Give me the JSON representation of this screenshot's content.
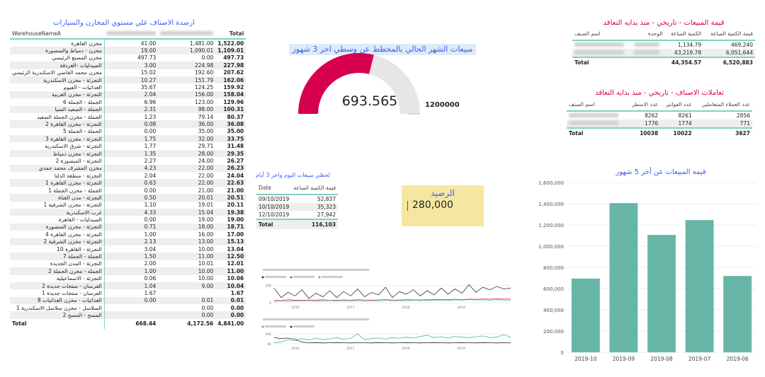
{
  "warehouse_table": {
    "title": "ارصدة الاصناف علي مستوي المخازن والسيارات",
    "col_name": "WarehouseNameA",
    "col_total": "Total",
    "rows": [
      [
        "مخزن القاهرة",
        "41.00",
        "1,481.00",
        "1,522.00"
      ],
      [
        "مخزن - دمياط والمنصورة",
        "19.00",
        "1,090.01",
        "1,109.01"
      ],
      [
        "مخزن المصنع الرئيسي",
        "497.73",
        "0.00",
        "497.73"
      ],
      [
        "الصيدليات -الغردقة",
        "3.00",
        "224.98",
        "227.98"
      ],
      [
        "مخزن محمد القاضي الاسكندرية الرئيسي",
        "15.02",
        "192.60",
        "207.62"
      ],
      [
        "التجزئة - مخزن الاسكندرية",
        "10.27",
        "151.79",
        "162.06"
      ],
      [
        "الغذائيات - الفيوم",
        "35.67",
        "124.25",
        "159.92"
      ],
      [
        "التجزئة - مخزن الغربية",
        "2.04",
        "156.00",
        "158.04"
      ],
      [
        "الجملة - الجملة 6",
        "6.96",
        "123.00",
        "129.96"
      ],
      [
        "الجملة - الصعيد المنيا",
        "2.31",
        "98.00",
        "100.31"
      ],
      [
        "الجملة - مخزن الجملة الصعيد",
        "1.23",
        "79.14",
        "80.37"
      ],
      [
        "التجزئة - مخزن القاهرة 2",
        "0.08",
        "36.00",
        "36.08"
      ],
      [
        "الجملة - الجملة 5",
        "0.00",
        "35.00",
        "35.00"
      ],
      [
        "التجزئة - مخزن القاهرة 3",
        "1.75",
        "32.00",
        "33.75"
      ],
      [
        "التجزئة - شرق الاسكندرية",
        "1.77",
        "29.71",
        "31.48"
      ],
      [
        "التجزئة - مخزن دمياط",
        "1.35",
        "28.00",
        "29.35"
      ],
      [
        "التجزئة - المنصورة 2",
        "2.27",
        "24.00",
        "26.27"
      ],
      [
        "مخزن المشرف محمد حمدي",
        "4.23",
        "22.00",
        "26.23"
      ],
      [
        "التجزئة - منطقة الدلتا",
        "2.04",
        "22.00",
        "24.04"
      ],
      [
        "التجزئة - مخزن القاهرة 1",
        "0.63",
        "22.00",
        "22.63"
      ],
      [
        "الجملة - مخزن الجملة 1",
        "0.00",
        "21.00",
        "21.00"
      ],
      [
        "التجزئة - مدن القناة",
        "0.50",
        "20.01",
        "20.51"
      ],
      [
        "التجزئة - مخزن الشرقية 1",
        "1.10",
        "19.01",
        "20.11"
      ],
      [
        "غرب الاسكندرية",
        "4.33",
        "15.04",
        "19.38"
      ],
      [
        "الصيدليات - القاهرة",
        "0.00",
        "19.00",
        "19.00"
      ],
      [
        "التجزئة - مخزن المنصورة",
        "0.71",
        "18.00",
        "18.71"
      ],
      [
        "التجزئة - مخزن القاهرة 4",
        "1.00",
        "16.00",
        "17.00"
      ],
      [
        "التجزئة - مخزن الشرقية 2",
        "2.13",
        "13.00",
        "15.13"
      ],
      [
        "التجزئة - القاهرة 10",
        "3.04",
        "10.00",
        "13.04"
      ],
      [
        "الجملة - الجملة 7",
        "1.50",
        "11.00",
        "12.50"
      ],
      [
        "التجزئة - المدن الجديدة",
        "2.00",
        "10.01",
        "12.01"
      ],
      [
        "الجملة - مخزن الجملة 2",
        "1.00",
        "10.00",
        "11.00"
      ],
      [
        "التجزئة - الاسماعيلية",
        "0.06",
        "10.00",
        "10.06"
      ],
      [
        "الفرسان - منتجات جديدة 2",
        "1.04",
        "9.00",
        "10.04"
      ],
      [
        "الفرسان - منتجات جديدة 1",
        "1.67",
        "",
        "1.67"
      ],
      [
        "الغذائيات - مخزن الغذائيات 8",
        "0.00",
        "0.01",
        "0.01"
      ],
      [
        "السلاسل - مخزن سلاسل الاسكندرية 1",
        "",
        "0.00",
        "0.00"
      ],
      [
        "المسح - المسح 2",
        "",
        "0.00",
        "0.00"
      ]
    ],
    "total": [
      "Total",
      "668.44",
      "4,172.56",
      "4,841.00"
    ]
  },
  "gauge": {
    "title": "مبيعات الشهر الحالي بالمخطط عن وسطي اخر 3 شهور",
    "value": 693565,
    "value_label": "693.565",
    "max": 1200000,
    "max_label": "1200000",
    "fill_color": "#d6004f",
    "track_color": "#e6e6e6"
  },
  "daily_table": {
    "title": "لحظي مبيعات اليوم واخر 3 أيام",
    "headers": [
      "Date",
      "قيمة الكمية المباعة"
    ],
    "rows": [
      [
        "09/10/2019",
        "52,837"
      ],
      [
        "10/10/2019",
        "35,323"
      ],
      [
        "12/10/2019",
        "27,942"
      ]
    ],
    "total": [
      "Total",
      "116,103"
    ]
  },
  "balance_card": {
    "title": "الرصيد",
    "value": "280,000",
    "bg_color": "#f5e7a1"
  },
  "sales_table": {
    "title": "قيمة المبيعات - تاريخي - منذ بدايه التعاقد",
    "headers": [
      "اسم الصنف",
      "الوحدة",
      "الكمية المباعة",
      "قيمة الكمية المباعة"
    ],
    "rows": [
      [
        "",
        "",
        "1,134.79",
        "469,240"
      ],
      [
        "",
        "",
        "43,219.78",
        "6,051,644"
      ]
    ],
    "total": [
      "Total",
      "",
      "44,354.57",
      "6,520,883"
    ]
  },
  "transactions_table": {
    "title": "تعاملات الاصناف - تاريخي - منذ بدايه التعاقد",
    "headers": [
      "اسم الصنف",
      "عدد الاسطر",
      "عدد الفواتير",
      "عدد العملاء المتعاملين"
    ],
    "rows": [
      [
        "",
        "8262",
        "8261",
        "2856"
      ],
      [
        "",
        "1776",
        "1774",
        "771"
      ]
    ],
    "total": [
      "Total",
      "10038",
      "10022",
      "3627"
    ]
  },
  "chart_data": [
    {
      "type": "bar",
      "title": "قيمة المبيعات عن أخر 5 شهور",
      "categories": [
        "2019-10",
        "2019-09",
        "2019-08",
        "2019-07",
        "2019-06"
      ],
      "values": [
        693565,
        1405000,
        1105000,
        1245000,
        718000
      ],
      "ylim": [
        0,
        1600000
      ],
      "yticks": [
        "0",
        "200,000",
        "400,000",
        "600,000",
        "800,000",
        "1,000,000",
        "1,200,000",
        "1,400,000",
        "1,600,000"
      ],
      "grid": true,
      "color": "#66b5a6"
    },
    {
      "type": "line",
      "xticks": [
        "2016",
        "2017",
        "2018",
        "2019"
      ],
      "yticks": [
        "0",
        "200"
      ],
      "ylim": [
        0,
        230
      ],
      "grid": true,
      "series": [
        {
          "color": "#333333",
          "values": [
            170,
            60,
            120,
            80,
            150,
            50,
            110,
            70,
            140,
            60,
            130,
            80,
            160,
            70,
            120,
            90,
            180,
            60,
            130,
            100,
            150,
            80,
            140,
            90,
            170,
            100,
            160,
            110,
            210,
            120,
            180,
            150,
            190,
            160,
            170
          ]
        },
        {
          "color": "#e04040",
          "values": [
            30,
            25,
            35,
            30,
            28,
            32,
            30,
            35,
            28,
            30,
            33,
            30,
            35,
            32,
            30,
            34,
            36,
            30,
            32,
            35,
            34,
            33,
            36,
            35,
            38,
            36,
            40,
            38,
            42,
            40,
            44,
            42,
            45,
            43,
            44
          ]
        },
        {
          "color": "#3cb8a8",
          "values": [
            15,
            20,
            18,
            22,
            20,
            25,
            18,
            22,
            25,
            20,
            24,
            22,
            26,
            20,
            24,
            22,
            28,
            24,
            26,
            25,
            28,
            26,
            30,
            28,
            32,
            28,
            34,
            30,
            36,
            32,
            34,
            30,
            36,
            32,
            30
          ]
        }
      ]
    },
    {
      "type": "line",
      "xticks": [
        "2016",
        "2017",
        "2018",
        "2019"
      ],
      "yticks": [
        "0K",
        "50K"
      ],
      "ylim": [
        0,
        55000
      ],
      "grid": true,
      "series": [
        {
          "color": "#3cb8a8",
          "values": [
            5000,
            8000,
            20000,
            15000,
            25000,
            18000,
            28000,
            20000,
            24000,
            30000,
            22000,
            26000,
            48000,
            20000,
            25000,
            28000,
            22000,
            30000,
            26000,
            32000,
            28000,
            35000,
            42000,
            30000,
            34000,
            28000,
            36000,
            32000,
            30000,
            34000,
            38000,
            30000,
            32000,
            45000,
            30000
          ]
        },
        {
          "color": "#333333",
          "values": [
            30000,
            25000,
            28000,
            22000,
            8000,
            5000,
            6000,
            4000,
            5000,
            6000,
            5000,
            4000,
            6000,
            5000,
            4000,
            6000,
            5000,
            4000,
            5000,
            6000,
            5000,
            4000,
            5000,
            6000,
            5000,
            4000,
            5000,
            6000,
            5000,
            4000,
            6000,
            5000,
            4000,
            5000,
            4000
          ]
        }
      ]
    }
  ]
}
